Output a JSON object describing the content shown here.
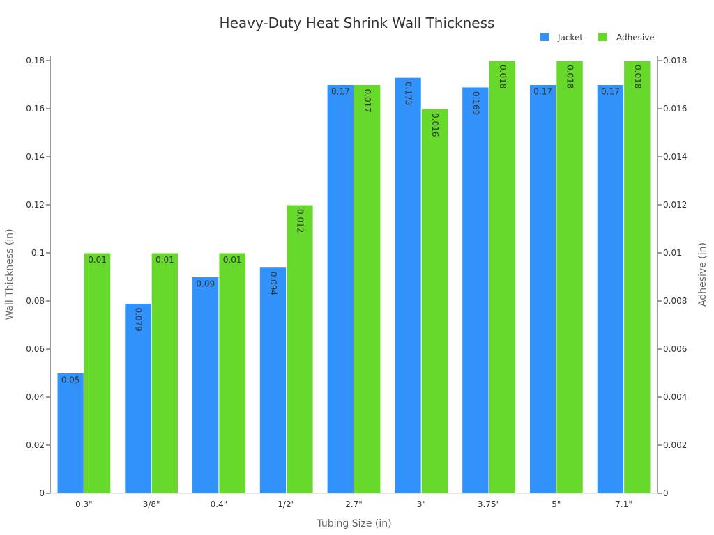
{
  "chart_data": {
    "type": "bar",
    "title": "Heavy-Duty Heat Shrink Wall Thickness",
    "xlabel": "Tubing Size (in)",
    "ylabel": "Wall Thickness (in)",
    "y2label": "Adhesive (in)",
    "categories": [
      "0.3\"",
      "3/8\"",
      "0.4\"",
      "1/2\"",
      "2.7\"",
      "3\"",
      "3.75\"",
      "5\"",
      "7.1\""
    ],
    "ylim": [
      0,
      0.18
    ],
    "y2lim": [
      0,
      0.018
    ],
    "yticks": [
      "0",
      "0.02",
      "0.04",
      "0.06",
      "0.08",
      "0.1",
      "0.12",
      "0.14",
      "0.16",
      "0.18"
    ],
    "y2ticks": [
      "0",
      "0.002",
      "0.004",
      "0.006",
      "0.008",
      "0.01",
      "0.012",
      "0.014",
      "0.016",
      "0.018"
    ],
    "legend_position": "top-right",
    "grid": false,
    "series": [
      {
        "name": "Jacket",
        "axis": "left",
        "color": "#3092fa",
        "values": [
          0.05,
          0.079,
          0.09,
          0.094,
          0.17,
          0.173,
          0.169,
          0.17,
          0.17
        ],
        "labels": [
          "0.05",
          "0.079",
          "0.09",
          "0.094",
          "0.17",
          "0.173",
          "0.169",
          "0.17",
          "0.17"
        ]
      },
      {
        "name": "Adhesive",
        "axis": "right",
        "color": "#66d92a",
        "values": [
          0.01,
          0.01,
          0.01,
          0.012,
          0.017,
          0.016,
          0.018,
          0.018,
          0.018
        ],
        "labels": [
          "0.01",
          "0.01",
          "0.01",
          "0.012",
          "0.017",
          "0.016",
          "0.018",
          "0.018",
          "0.018"
        ]
      }
    ]
  }
}
